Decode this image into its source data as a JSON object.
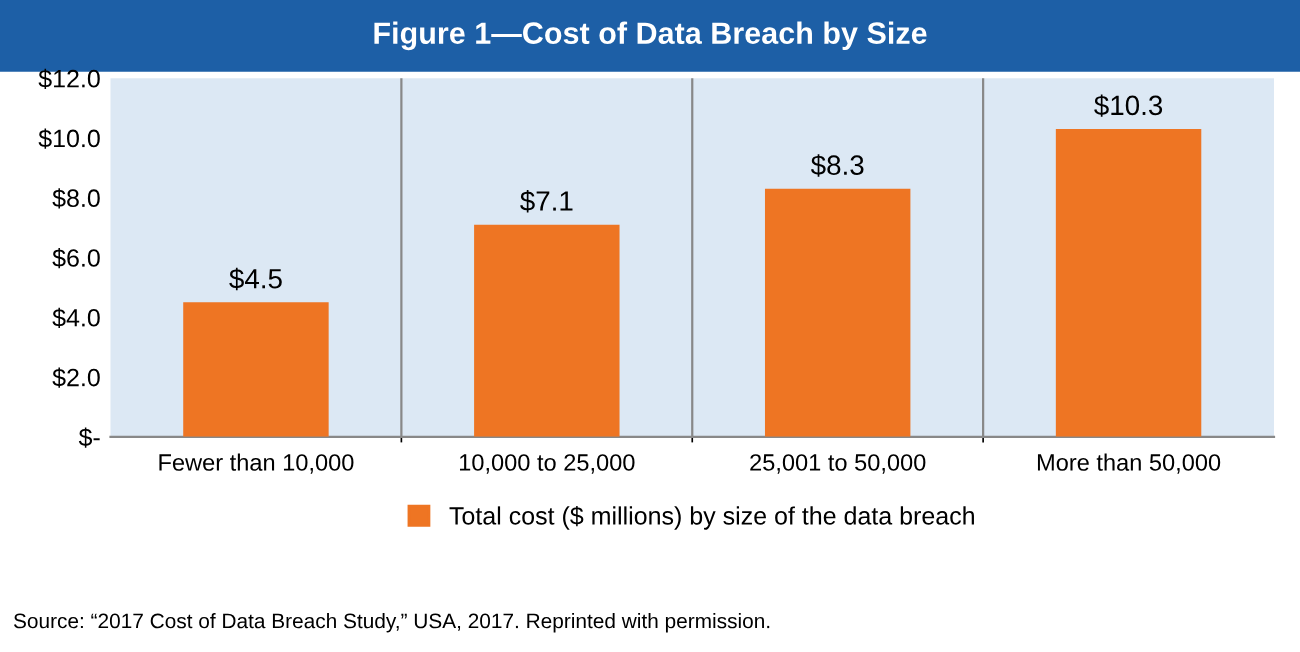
{
  "chart_data": {
    "type": "bar",
    "title": "Figure 1—Cost of Data Breach by Size",
    "categories": [
      "Fewer than 10,000",
      "10,000 to 25,000",
      "25,001 to 50,000",
      "More than 50,000"
    ],
    "series": [
      {
        "name": "Total cost ($ millions) by size of the data breach",
        "color": "#ee7523",
        "values": [
          4.5,
          7.1,
          8.3,
          10.3
        ],
        "value_labels": [
          "$4.5",
          "$7.1",
          "$8.3",
          "$10.3"
        ]
      }
    ],
    "ylim": [
      0,
      12
    ],
    "yticks": [
      {
        "value": 0,
        "label": "$-"
      },
      {
        "value": 2,
        "label": "$2.0"
      },
      {
        "value": 4,
        "label": "$4.0"
      },
      {
        "value": 6,
        "label": "$6.0"
      },
      {
        "value": 8,
        "label": "$8.0"
      },
      {
        "value": 10,
        "label": "$10.0"
      },
      {
        "value": 12,
        "label": "$12.0"
      }
    ],
    "grid": "x",
    "legend": "bottom",
    "annotations": [
      "Source: “2017 Cost of Data Breach Study,” USA, 2017. Reprinted with permission."
    ]
  }
}
